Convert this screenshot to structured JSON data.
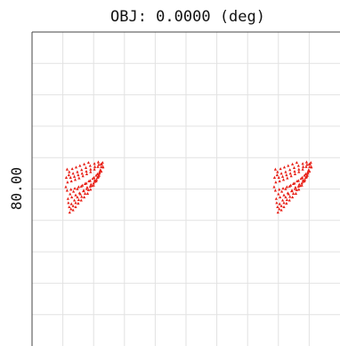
{
  "chart_data": {
    "type": "scatter",
    "title": "OBJ: 0.0000 (deg)",
    "ylabel": "80.00",
    "xlabel": "",
    "grid": true,
    "marker": "triangle",
    "series": [
      {
        "values": [
          [
            -0.78,
            0.95
          ],
          [
            -0.72,
            0.82
          ],
          [
            -0.62,
            0.7
          ],
          [
            -0.5,
            0.58
          ],
          [
            -0.36,
            0.46
          ],
          [
            -0.22,
            0.34
          ],
          [
            -0.06,
            0.22
          ],
          [
            0.1,
            0.08
          ],
          [
            0.26,
            -0.08
          ],
          [
            0.4,
            -0.24
          ],
          [
            0.52,
            -0.4
          ],
          [
            0.6,
            -0.56
          ],
          [
            0.66,
            -0.7
          ],
          [
            0.7,
            -0.82
          ],
          [
            0.72,
            -0.92
          ],
          [
            -0.62,
            0.86
          ],
          [
            -0.5,
            0.74
          ],
          [
            -0.38,
            0.6
          ],
          [
            -0.24,
            0.48
          ],
          [
            -0.1,
            0.36
          ],
          [
            0.06,
            0.22
          ],
          [
            0.2,
            0.06
          ],
          [
            0.34,
            -0.1
          ],
          [
            0.46,
            -0.26
          ],
          [
            0.56,
            -0.42
          ],
          [
            0.62,
            -0.58
          ],
          [
            -0.86,
            0.42
          ],
          [
            -0.68,
            0.36
          ],
          [
            -0.5,
            0.28
          ],
          [
            -0.32,
            0.2
          ],
          [
            -0.14,
            0.12
          ],
          [
            0.02,
            0.04
          ],
          [
            0.18,
            -0.06
          ],
          [
            0.34,
            -0.18
          ],
          [
            0.48,
            -0.32
          ],
          [
            0.6,
            -0.48
          ],
          [
            0.7,
            -0.64
          ],
          [
            0.78,
            -0.8
          ],
          [
            -0.9,
            0.1
          ],
          [
            -0.72,
            0.06
          ],
          [
            -0.54,
            0.02
          ],
          [
            -0.36,
            -0.04
          ],
          [
            -0.18,
            -0.1
          ],
          [
            0.0,
            -0.18
          ],
          [
            0.18,
            -0.28
          ],
          [
            0.36,
            -0.4
          ],
          [
            0.52,
            -0.54
          ],
          [
            0.66,
            -0.68
          ],
          [
            0.78,
            -0.82
          ],
          [
            -0.88,
            -0.22
          ],
          [
            -0.7,
            -0.26
          ],
          [
            -0.52,
            -0.32
          ],
          [
            -0.34,
            -0.38
          ],
          [
            -0.16,
            -0.46
          ],
          [
            0.02,
            -0.54
          ],
          [
            0.2,
            -0.62
          ],
          [
            0.38,
            -0.72
          ],
          [
            0.54,
            -0.82
          ],
          [
            0.68,
            -0.92
          ],
          [
            -0.82,
            -0.5
          ],
          [
            -0.62,
            -0.56
          ],
          [
            -0.42,
            -0.62
          ],
          [
            -0.22,
            -0.7
          ],
          [
            -0.02,
            -0.78
          ],
          [
            0.18,
            -0.86
          ],
          [
            0.38,
            -0.94
          ],
          [
            0.56,
            -1.0
          ],
          [
            -0.9,
            -0.72
          ],
          [
            -0.8,
            -0.62
          ],
          [
            -0.66,
            -0.74
          ],
          [
            -0.48,
            -0.8
          ],
          [
            -0.3,
            -0.86
          ],
          [
            -0.1,
            -0.92
          ],
          [
            0.1,
            -0.98
          ],
          [
            -0.7,
            0.62
          ],
          [
            -0.56,
            0.48
          ],
          [
            -0.42,
            0.36
          ],
          [
            -0.28,
            0.24
          ],
          [
            -0.12,
            0.1
          ],
          [
            0.04,
            -0.02
          ],
          [
            0.22,
            -0.14
          ],
          [
            0.4,
            -0.3
          ],
          [
            0.56,
            -0.46
          ],
          [
            -0.8,
            0.74
          ],
          [
            -0.84,
            0.58
          ],
          [
            -0.76,
            0.24
          ],
          [
            -0.6,
            0.14
          ],
          [
            -0.42,
            0.04
          ],
          [
            -0.24,
            -0.06
          ],
          [
            -0.06,
            -0.16
          ],
          [
            0.12,
            -0.26
          ],
          [
            0.3,
            -0.36
          ],
          [
            0.46,
            -0.48
          ],
          [
            0.62,
            -0.62
          ],
          [
            -0.74,
            -0.4
          ],
          [
            -0.56,
            -0.44
          ],
          [
            -0.38,
            -0.5
          ],
          [
            -0.2,
            -0.56
          ],
          [
            0.0,
            -0.64
          ],
          [
            0.2,
            -0.72
          ],
          [
            0.4,
            -0.82
          ],
          [
            0.58,
            -0.9
          ],
          [
            0.76,
            -0.98
          ],
          [
            -0.94,
            -0.4
          ],
          [
            -0.96,
            -0.04
          ]
        ]
      }
    ],
    "colors": {
      "points": "#e8231a",
      "grid": "#e2e2e2",
      "axis": "#444444",
      "background": "#ffffff"
    }
  }
}
